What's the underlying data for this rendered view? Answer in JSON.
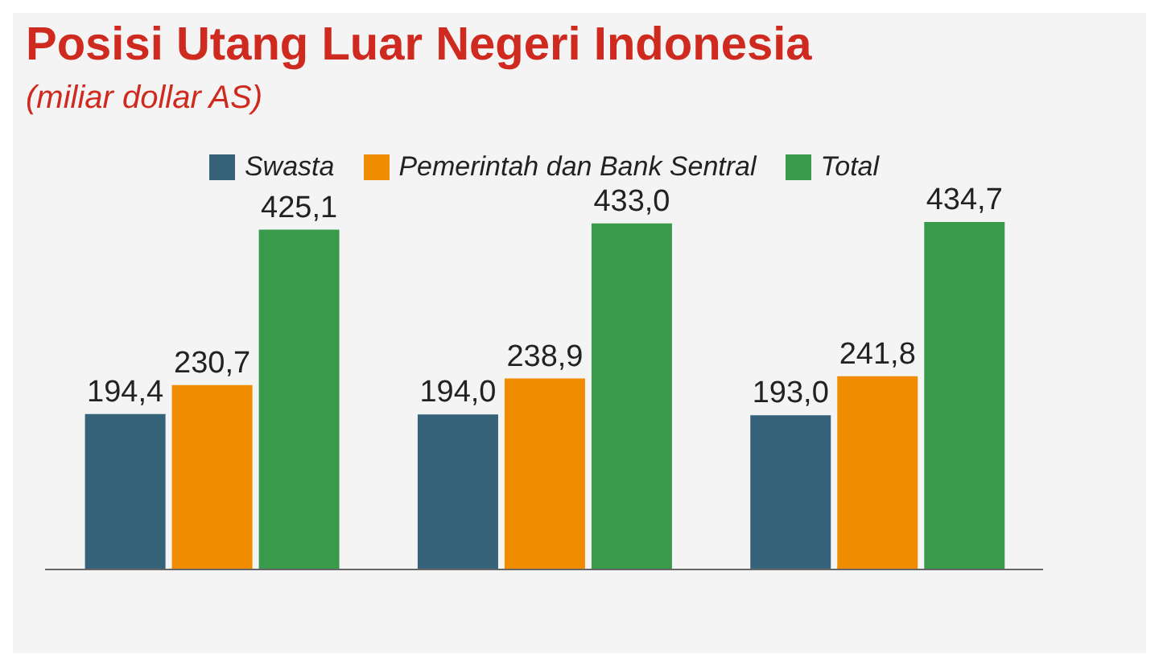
{
  "chart_data": {
    "type": "bar",
    "title": "Posisi Utang Luar Negeri Indonesia",
    "subtitle": "(miliar dollar AS)",
    "categories": [
      null,
      null,
      null
    ],
    "series": [
      {
        "name": "Swasta",
        "color": "#36627a",
        "values": [
          194.4,
          194.0,
          193.0
        ],
        "value_labels": [
          "194,4",
          "194,0",
          "193,0"
        ]
      },
      {
        "name": "Pemerintah dan Bank Sentral",
        "color": "#f08c00",
        "values": [
          230.7,
          238.9,
          241.8
        ],
        "value_labels": [
          "230,7",
          "238,9",
          "241,8"
        ]
      },
      {
        "name": "Total",
        "color": "#3a9a4c",
        "values": [
          425.1,
          433.0,
          434.7
        ],
        "value_labels": [
          "425,1",
          "433,0",
          "434,7"
        ]
      }
    ],
    "legend": "top",
    "grid": false
  }
}
